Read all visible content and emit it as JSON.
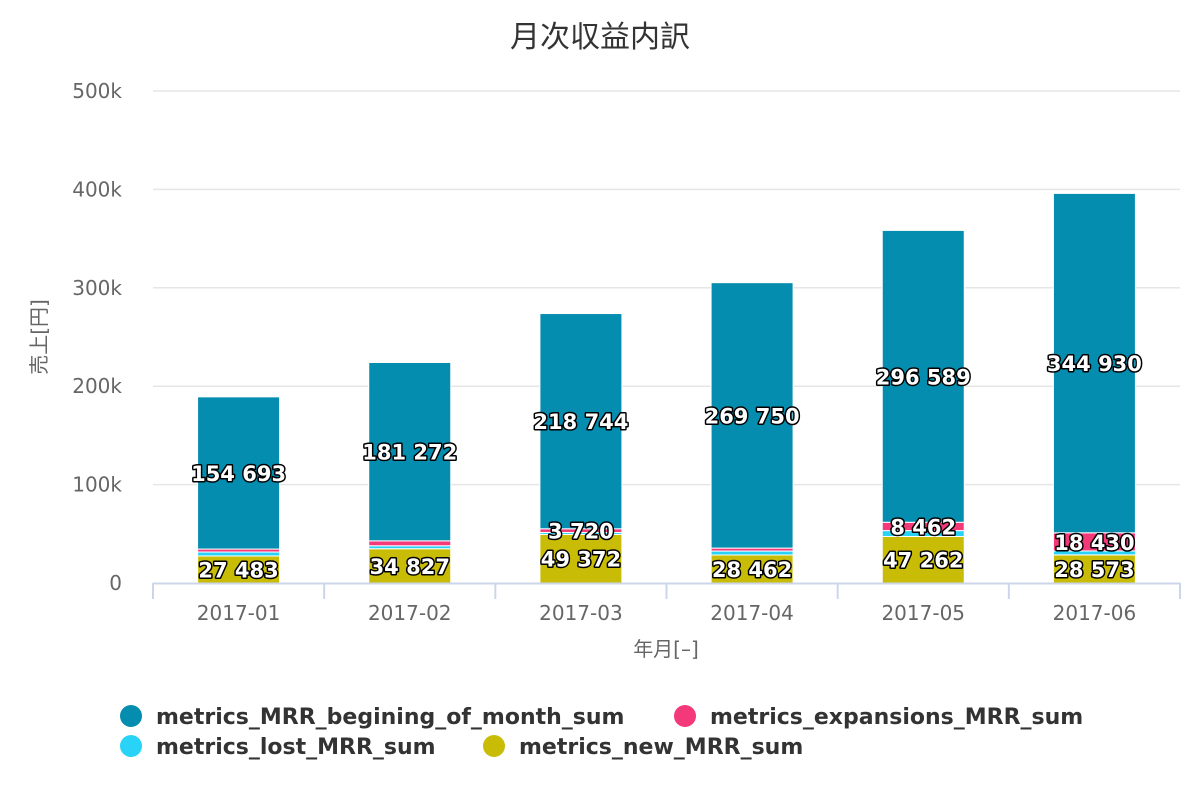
{
  "chart_data": {
    "type": "bar",
    "stacked": true,
    "title": "月次収益内訳",
    "xlabel": "年月[–]",
    "ylabel": "売上[円]",
    "categories": [
      "2017-01",
      "2017-02",
      "2017-03",
      "2017-04",
      "2017-05",
      "2017-06"
    ],
    "ylim": [
      0,
      500000
    ],
    "yticks": [
      0,
      100000,
      200000,
      300000,
      400000,
      500000
    ],
    "ytick_labels": [
      "0",
      "100k",
      "200k",
      "300k",
      "400k",
      "500k"
    ],
    "grid": true,
    "legend_position": "bottom",
    "series": [
      {
        "name": "metrics_new_MRR_sum",
        "color": "#c9bc06",
        "values": [
          27483,
          34827,
          49372,
          28462,
          47262,
          28573
        ],
        "labels": [
          "27 483",
          "34 827",
          "49 372",
          "28 462",
          "47 262",
          "28 573"
        ]
      },
      {
        "name": "metrics_lost_MRR_sum",
        "color": "#28d3f7",
        "values": [
          4000,
          3000,
          2000,
          4000,
          6000,
          4000
        ],
        "labels": [
          "",
          "",
          "",
          "",
          "",
          ""
        ]
      },
      {
        "name": "metrics_expansions_MRR_sum",
        "color": "#f4397a",
        "values": [
          3000,
          5000,
          3720,
          3000,
          8462,
          18430
        ],
        "labels": [
          "",
          "",
          "3 720",
          "",
          "8 462",
          "18 430"
        ]
      },
      {
        "name": "metrics_MRR_begining_of_month_sum",
        "color": "#058db0",
        "values": [
          154693,
          181272,
          218744,
          269750,
          296589,
          344930
        ],
        "labels": [
          "154 693",
          "181 272",
          "218 744",
          "269 750",
          "296 589",
          "344 930"
        ]
      }
    ],
    "legend": [
      {
        "name": "metrics_MRR_begining_of_month_sum",
        "color": "#058db0"
      },
      {
        "name": "metrics_expansions_MRR_sum",
        "color": "#f4397a"
      },
      {
        "name": "metrics_lost_MRR_sum",
        "color": "#28d3f7"
      },
      {
        "name": "metrics_new_MRR_sum",
        "color": "#c9bc06"
      }
    ]
  }
}
